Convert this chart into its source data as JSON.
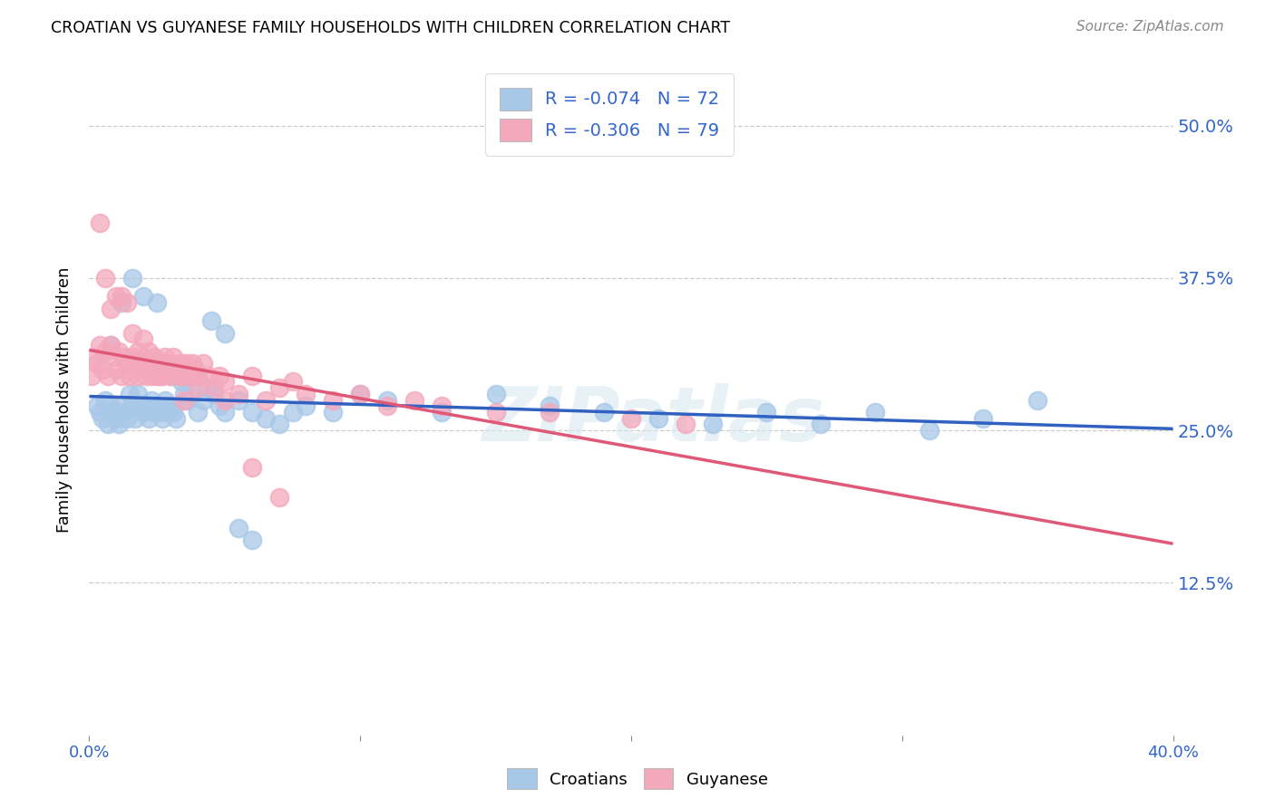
{
  "title": "CROATIAN VS GUYANESE FAMILY HOUSEHOLDS WITH CHILDREN CORRELATION CHART",
  "source": "Source: ZipAtlas.com",
  "ylabel": "Family Households with Children",
  "ytick_labels": [
    "12.5%",
    "25.0%",
    "37.5%",
    "50.0%"
  ],
  "ytick_values": [
    0.125,
    0.25,
    0.375,
    0.5
  ],
  "xlim": [
    0.0,
    0.4
  ],
  "ylim": [
    0.0,
    0.55
  ],
  "watermark": "ZIPatlas",
  "legend_line1": "R = -0.074   N = 72",
  "legend_line2": "R = -0.306   N = 79",
  "croatian_color": "#a8c8e8",
  "guyanese_color": "#f4a8bc",
  "trendline_croatian_color": "#3060c0",
  "trendline_guyanese_color": "#e05878",
  "croatian_scatter_x": [
    0.003,
    0.004,
    0.005,
    0.006,
    0.007,
    0.008,
    0.009,
    0.01,
    0.011,
    0.012,
    0.013,
    0.014,
    0.015,
    0.016,
    0.017,
    0.018,
    0.019,
    0.02,
    0.021,
    0.022,
    0.023,
    0.024,
    0.025,
    0.026,
    0.027,
    0.028,
    0.029,
    0.03,
    0.031,
    0.032,
    0.034,
    0.036,
    0.038,
    0.04,
    0.042,
    0.044,
    0.046,
    0.048,
    0.05,
    0.055,
    0.06,
    0.065,
    0.07,
    0.075,
    0.08,
    0.09,
    0.1,
    0.11,
    0.13,
    0.15,
    0.17,
    0.19,
    0.21,
    0.23,
    0.25,
    0.27,
    0.29,
    0.31,
    0.33,
    0.35,
    0.008,
    0.012,
    0.016,
    0.02,
    0.025,
    0.03,
    0.035,
    0.04,
    0.045,
    0.05,
    0.055,
    0.06
  ],
  "croatian_scatter_y": [
    0.27,
    0.265,
    0.26,
    0.275,
    0.255,
    0.27,
    0.265,
    0.26,
    0.255,
    0.27,
    0.265,
    0.26,
    0.28,
    0.27,
    0.26,
    0.28,
    0.27,
    0.265,
    0.27,
    0.26,
    0.275,
    0.265,
    0.27,
    0.265,
    0.26,
    0.275,
    0.265,
    0.27,
    0.265,
    0.26,
    0.29,
    0.275,
    0.28,
    0.265,
    0.275,
    0.285,
    0.28,
    0.27,
    0.265,
    0.275,
    0.265,
    0.26,
    0.255,
    0.265,
    0.27,
    0.265,
    0.28,
    0.275,
    0.265,
    0.28,
    0.27,
    0.265,
    0.26,
    0.255,
    0.265,
    0.255,
    0.265,
    0.25,
    0.26,
    0.275,
    0.32,
    0.355,
    0.375,
    0.36,
    0.355,
    0.295,
    0.28,
    0.295,
    0.34,
    0.33,
    0.17,
    0.16
  ],
  "guyanese_scatter_x": [
    0.001,
    0.002,
    0.003,
    0.004,
    0.005,
    0.006,
    0.007,
    0.008,
    0.009,
    0.01,
    0.011,
    0.012,
    0.013,
    0.014,
    0.015,
    0.016,
    0.017,
    0.018,
    0.019,
    0.02,
    0.021,
    0.022,
    0.023,
    0.024,
    0.025,
    0.026,
    0.027,
    0.028,
    0.029,
    0.03,
    0.031,
    0.032,
    0.033,
    0.034,
    0.035,
    0.036,
    0.037,
    0.038,
    0.039,
    0.04,
    0.042,
    0.044,
    0.046,
    0.048,
    0.05,
    0.055,
    0.06,
    0.065,
    0.07,
    0.075,
    0.08,
    0.09,
    0.1,
    0.11,
    0.12,
    0.13,
    0.15,
    0.17,
    0.2,
    0.22,
    0.004,
    0.006,
    0.008,
    0.01,
    0.012,
    0.014,
    0.016,
    0.018,
    0.02,
    0.022,
    0.024,
    0.026,
    0.028,
    0.03,
    0.035,
    0.04,
    0.05,
    0.06,
    0.07
  ],
  "guyanese_scatter_y": [
    0.295,
    0.31,
    0.305,
    0.32,
    0.3,
    0.315,
    0.295,
    0.32,
    0.31,
    0.3,
    0.315,
    0.295,
    0.31,
    0.305,
    0.295,
    0.31,
    0.3,
    0.295,
    0.305,
    0.31,
    0.295,
    0.305,
    0.295,
    0.31,
    0.295,
    0.305,
    0.295,
    0.305,
    0.3,
    0.295,
    0.31,
    0.3,
    0.295,
    0.305,
    0.295,
    0.305,
    0.295,
    0.305,
    0.3,
    0.295,
    0.305,
    0.295,
    0.285,
    0.295,
    0.29,
    0.28,
    0.295,
    0.275,
    0.285,
    0.29,
    0.28,
    0.275,
    0.28,
    0.27,
    0.275,
    0.27,
    0.265,
    0.265,
    0.26,
    0.255,
    0.42,
    0.375,
    0.35,
    0.36,
    0.36,
    0.355,
    0.33,
    0.315,
    0.325,
    0.315,
    0.305,
    0.295,
    0.31,
    0.305,
    0.275,
    0.285,
    0.275,
    0.22,
    0.195
  ]
}
